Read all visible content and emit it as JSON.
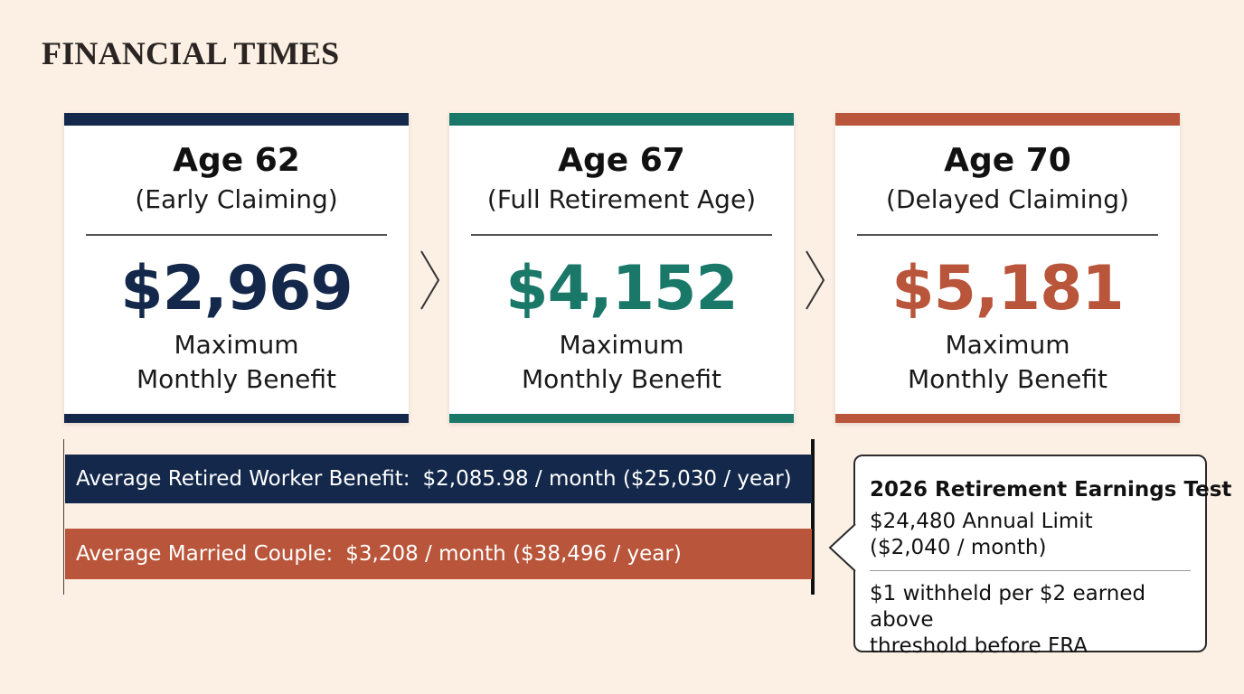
{
  "brand": "FINANCIAL TIMES",
  "colors": {
    "navy": "#14284b",
    "teal": "#1a7869",
    "rust": "#b9553a",
    "background": "#fcefe4"
  },
  "cards": [
    {
      "age": "Age 62",
      "subtitle": "(Early Claiming)",
      "amount": "$2,969",
      "desc_line1": "Maximum",
      "desc_line2": "Monthly Benefit"
    },
    {
      "age": "Age 67",
      "subtitle": "(Full Retirement Age)",
      "amount": "$4,152",
      "desc_line1": "Maximum",
      "desc_line2": "Monthly Benefit"
    },
    {
      "age": "Age 70",
      "subtitle": "(Delayed Claiming)",
      "amount": "$5,181",
      "desc_line1": "Maximum",
      "desc_line2": "Monthly Benefit"
    }
  ],
  "averages": {
    "worker": {
      "label": "Average Retired Worker Benefit:",
      "value": "$2,085.98 / month ($25,030 / year)"
    },
    "couple": {
      "label": "Average Married Couple:",
      "value": "$3,208 / month ($38,496 / year)"
    }
  },
  "earnings_test": {
    "title": "2026 Retirement Earnings Test",
    "limit_line1": "$24,480 Annual Limit",
    "limit_line2": "($2,040 / month)",
    "rule_line1": "$1 withheld per $2 earned above",
    "rule_line2": "threshold before FRA"
  }
}
